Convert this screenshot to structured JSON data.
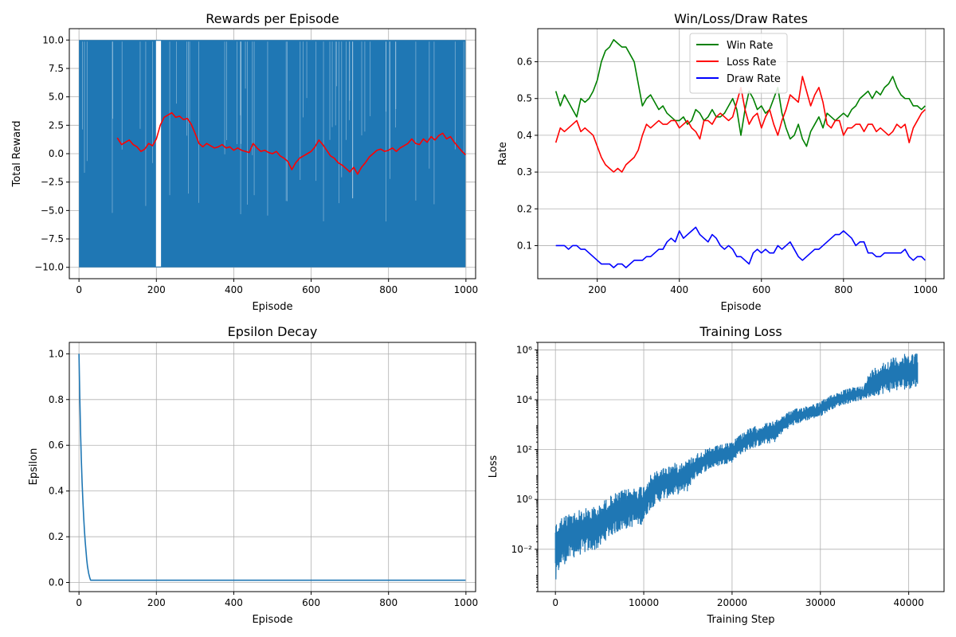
{
  "chart_data": [
    {
      "type": "line",
      "title": "Rewards per Episode",
      "xlabel": "Episode",
      "ylabel": "Total Reward",
      "xlim": [
        -25,
        1025
      ],
      "ylim": [
        -11,
        11
      ],
      "xticks": [
        0,
        200,
        400,
        600,
        800,
        1000
      ],
      "xtick_labels": [
        "0",
        "200",
        "400",
        "600",
        "800",
        "1000"
      ],
      "yticks": [
        -10.0,
        -7.5,
        -5.0,
        -2.5,
        0.0,
        2.5,
        5.0,
        7.5,
        10.0
      ],
      "ytick_labels": [
        "−10.0",
        "−7.5",
        "−5.0",
        "−2.5",
        "0.0",
        "2.5",
        "5.0",
        "7.5",
        "10.0"
      ],
      "grid": true,
      "series": [
        {
          "color": "#1f77b4",
          "style": "dense_binary",
          "x_range": [
            0,
            999
          ],
          "values": [
            -10,
            10
          ],
          "white_gaps": [
            [
              199,
              212
            ]
          ]
        },
        {
          "color": "#ff0000",
          "x": [
            99,
            110,
            120,
            130,
            140,
            150,
            160,
            170,
            180,
            190,
            200,
            210,
            220,
            230,
            240,
            250,
            260,
            270,
            280,
            290,
            300,
            310,
            320,
            330,
            340,
            350,
            360,
            370,
            380,
            390,
            400,
            410,
            420,
            430,
            440,
            450,
            460,
            470,
            480,
            490,
            500,
            510,
            520,
            530,
            540,
            550,
            560,
            570,
            580,
            590,
            600,
            610,
            620,
            630,
            640,
            650,
            660,
            670,
            680,
            690,
            700,
            710,
            720,
            730,
            740,
            750,
            760,
            770,
            780,
            790,
            800,
            810,
            820,
            830,
            840,
            850,
            860,
            870,
            880,
            890,
            900,
            910,
            920,
            930,
            940,
            950,
            960,
            970,
            980,
            990,
            999
          ],
          "y": [
            1.4,
            0.8,
            1.0,
            1.2,
            0.8,
            0.6,
            0.2,
            0.4,
            0.9,
            0.7,
            1.3,
            2.5,
            3.2,
            3.4,
            3.6,
            3.2,
            3.3,
            3.0,
            3.1,
            2.6,
            1.8,
            0.9,
            0.6,
            0.9,
            0.7,
            0.5,
            0.6,
            0.8,
            0.5,
            0.6,
            0.3,
            0.5,
            0.3,
            0.2,
            0.1,
            0.9,
            0.5,
            0.2,
            0.3,
            0.1,
            0.0,
            0.2,
            -0.2,
            -0.4,
            -0.7,
            -1.4,
            -0.8,
            -0.4,
            -0.2,
            0.0,
            0.2,
            0.6,
            1.2,
            0.8,
            0.3,
            -0.2,
            -0.4,
            -0.8,
            -1.0,
            -1.3,
            -1.6,
            -1.2,
            -1.8,
            -1.2,
            -0.8,
            -0.3,
            0.0,
            0.3,
            0.4,
            0.2,
            0.3,
            0.5,
            0.2,
            0.5,
            0.7,
            0.9,
            1.3,
            0.9,
            0.8,
            1.3,
            1.0,
            1.5,
            1.2,
            1.6,
            1.8,
            1.3,
            1.5,
            1.0,
            0.6,
            0.2,
            -0.1
          ]
        }
      ]
    },
    {
      "type": "line",
      "title": "Win/Loss/Draw Rates",
      "xlabel": "Episode",
      "ylabel": "Rate",
      "xlim": [
        55,
        1045
      ],
      "ylim": [
        0.01,
        0.69
      ],
      "xticks": [
        200,
        400,
        600,
        800,
        1000
      ],
      "xtick_labels": [
        "200",
        "400",
        "600",
        "800",
        "1000"
      ],
      "yticks": [
        0.1,
        0.2,
        0.3,
        0.4,
        0.5,
        0.6
      ],
      "ytick_labels": [
        "0.1",
        "0.2",
        "0.3",
        "0.4",
        "0.5",
        "0.6"
      ],
      "grid": true,
      "legend_placement": "upper center",
      "series": [
        {
          "name": "Win Rate",
          "color": "#008000",
          "x": [
            99,
            110,
            120,
            130,
            140,
            150,
            160,
            170,
            180,
            190,
            200,
            210,
            220,
            230,
            240,
            250,
            260,
            270,
            280,
            290,
            300,
            310,
            320,
            330,
            340,
            350,
            360,
            370,
            380,
            390,
            400,
            410,
            420,
            430,
            440,
            450,
            460,
            470,
            480,
            490,
            500,
            510,
            520,
            530,
            540,
            550,
            560,
            570,
            580,
            590,
            600,
            610,
            620,
            630,
            640,
            650,
            660,
            670,
            680,
            690,
            700,
            710,
            720,
            730,
            740,
            750,
            760,
            770,
            780,
            790,
            800,
            810,
            820,
            830,
            840,
            850,
            860,
            870,
            880,
            890,
            900,
            910,
            920,
            930,
            940,
            950,
            960,
            970,
            980,
            990,
            999
          ],
          "y": [
            0.52,
            0.48,
            0.51,
            0.49,
            0.47,
            0.45,
            0.5,
            0.49,
            0.5,
            0.52,
            0.55,
            0.6,
            0.63,
            0.64,
            0.66,
            0.65,
            0.64,
            0.64,
            0.62,
            0.6,
            0.54,
            0.48,
            0.5,
            0.51,
            0.49,
            0.47,
            0.48,
            0.46,
            0.45,
            0.44,
            0.44,
            0.45,
            0.43,
            0.44,
            0.47,
            0.46,
            0.44,
            0.45,
            0.47,
            0.45,
            0.45,
            0.46,
            0.48,
            0.5,
            0.47,
            0.4,
            0.47,
            0.52,
            0.5,
            0.47,
            0.48,
            0.46,
            0.47,
            0.5,
            0.53,
            0.46,
            0.42,
            0.39,
            0.4,
            0.43,
            0.39,
            0.37,
            0.41,
            0.43,
            0.45,
            0.42,
            0.46,
            0.45,
            0.44,
            0.45,
            0.46,
            0.45,
            0.47,
            0.48,
            0.5,
            0.51,
            0.52,
            0.5,
            0.52,
            0.51,
            0.53,
            0.54,
            0.56,
            0.53,
            0.51,
            0.5,
            0.5,
            0.48,
            0.48,
            0.47,
            0.48
          ]
        },
        {
          "name": "Loss Rate",
          "color": "#ff0000",
          "x": [
            99,
            110,
            120,
            130,
            140,
            150,
            160,
            170,
            180,
            190,
            200,
            210,
            220,
            230,
            240,
            250,
            260,
            270,
            280,
            290,
            300,
            310,
            320,
            330,
            340,
            350,
            360,
            370,
            380,
            390,
            400,
            410,
            420,
            430,
            440,
            450,
            460,
            470,
            480,
            490,
            500,
            510,
            520,
            530,
            540,
            550,
            560,
            570,
            580,
            590,
            600,
            610,
            620,
            630,
            640,
            650,
            660,
            670,
            680,
            690,
            700,
            710,
            720,
            730,
            740,
            750,
            760,
            770,
            780,
            790,
            800,
            810,
            820,
            830,
            840,
            850,
            860,
            870,
            880,
            890,
            900,
            910,
            920,
            930,
            940,
            950,
            960,
            970,
            980,
            990,
            999
          ],
          "y": [
            0.38,
            0.42,
            0.41,
            0.42,
            0.43,
            0.44,
            0.41,
            0.42,
            0.41,
            0.4,
            0.37,
            0.34,
            0.32,
            0.31,
            0.3,
            0.31,
            0.3,
            0.32,
            0.33,
            0.34,
            0.36,
            0.4,
            0.43,
            0.42,
            0.43,
            0.44,
            0.43,
            0.43,
            0.44,
            0.44,
            0.42,
            0.43,
            0.44,
            0.42,
            0.41,
            0.39,
            0.44,
            0.44,
            0.43,
            0.45,
            0.46,
            0.45,
            0.44,
            0.45,
            0.49,
            0.53,
            0.47,
            0.43,
            0.45,
            0.46,
            0.42,
            0.45,
            0.47,
            0.43,
            0.4,
            0.44,
            0.47,
            0.51,
            0.5,
            0.49,
            0.56,
            0.52,
            0.48,
            0.51,
            0.53,
            0.49,
            0.43,
            0.42,
            0.44,
            0.44,
            0.4,
            0.42,
            0.42,
            0.43,
            0.43,
            0.41,
            0.43,
            0.43,
            0.41,
            0.42,
            0.41,
            0.4,
            0.41,
            0.43,
            0.42,
            0.43,
            0.38,
            0.42,
            0.44,
            0.46,
            0.47
          ]
        },
        {
          "name": "Draw Rate",
          "color": "#0000ff",
          "x": [
            99,
            110,
            120,
            130,
            140,
            150,
            160,
            170,
            180,
            190,
            200,
            210,
            220,
            230,
            240,
            250,
            260,
            270,
            280,
            290,
            300,
            310,
            320,
            330,
            340,
            350,
            360,
            370,
            380,
            390,
            400,
            410,
            420,
            430,
            440,
            450,
            460,
            470,
            480,
            490,
            500,
            510,
            520,
            530,
            540,
            550,
            560,
            570,
            580,
            590,
            600,
            610,
            620,
            630,
            640,
            650,
            660,
            670,
            680,
            690,
            700,
            710,
            720,
            730,
            740,
            750,
            760,
            770,
            780,
            790,
            800,
            810,
            820,
            830,
            840,
            850,
            860,
            870,
            880,
            890,
            900,
            910,
            920,
            930,
            940,
            950,
            960,
            970,
            980,
            990,
            999
          ],
          "y": [
            0.1,
            0.1,
            0.1,
            0.09,
            0.1,
            0.1,
            0.09,
            0.09,
            0.08,
            0.07,
            0.06,
            0.05,
            0.05,
            0.05,
            0.04,
            0.05,
            0.05,
            0.04,
            0.05,
            0.06,
            0.06,
            0.06,
            0.07,
            0.07,
            0.08,
            0.09,
            0.09,
            0.11,
            0.12,
            0.11,
            0.14,
            0.12,
            0.13,
            0.14,
            0.15,
            0.13,
            0.12,
            0.11,
            0.13,
            0.12,
            0.1,
            0.09,
            0.1,
            0.09,
            0.07,
            0.07,
            0.06,
            0.05,
            0.08,
            0.09,
            0.08,
            0.09,
            0.08,
            0.08,
            0.1,
            0.09,
            0.1,
            0.11,
            0.09,
            0.07,
            0.06,
            0.07,
            0.08,
            0.09,
            0.09,
            0.1,
            0.11,
            0.12,
            0.13,
            0.13,
            0.14,
            0.13,
            0.12,
            0.1,
            0.11,
            0.11,
            0.08,
            0.08,
            0.07,
            0.07,
            0.08,
            0.08,
            0.08,
            0.08,
            0.08,
            0.09,
            0.07,
            0.06,
            0.07,
            0.07,
            0.06
          ]
        }
      ]
    },
    {
      "type": "line",
      "title": "Epsilon Decay",
      "xlabel": "Episode",
      "ylabel": "Epsilon",
      "xlim": [
        -25,
        1025
      ],
      "ylim": [
        -0.04,
        1.05
      ],
      "xticks": [
        0,
        200,
        400,
        600,
        800,
        1000
      ],
      "xtick_labels": [
        "0",
        "200",
        "400",
        "600",
        "800",
        "1000"
      ],
      "yticks": [
        0.0,
        0.2,
        0.4,
        0.6,
        0.8,
        1.0
      ],
      "ytick_labels": [
        "0.0",
        "0.2",
        "0.4",
        "0.6",
        "0.8",
        "1.0"
      ],
      "grid": true,
      "series": [
        {
          "color": "#1f77b4",
          "x": [
            0,
            2,
            4,
            6,
            8,
            10,
            12,
            14,
            16,
            18,
            20,
            22,
            25,
            28,
            30,
            40,
            60,
            100,
            200,
            400,
            600,
            800,
            999
          ],
          "y": [
            1.0,
            0.82,
            0.66,
            0.54,
            0.44,
            0.36,
            0.29,
            0.23,
            0.18,
            0.14,
            0.1,
            0.07,
            0.04,
            0.02,
            0.01,
            0.01,
            0.01,
            0.01,
            0.01,
            0.01,
            0.01,
            0.01,
            0.01
          ]
        }
      ]
    },
    {
      "type": "line",
      "title": "Training Loss",
      "xlabel": "Training Step",
      "ylabel": "Loss",
      "yscale": "log",
      "xlim": [
        -2000,
        44000
      ],
      "ylim": [
        0.0002,
        2000000
      ],
      "xticks": [
        0,
        10000,
        20000,
        30000,
        40000
      ],
      "xtick_labels": [
        "0",
        "10000",
        "20000",
        "30000",
        "40000"
      ],
      "yticks": [
        0.01,
        1,
        100,
        10000,
        1000000
      ],
      "ytick_labels": [
        "10⁻²",
        "10⁰",
        "10²",
        "10⁴",
        "10⁶"
      ],
      "grid": true,
      "series": [
        {
          "color": "#1f77b4",
          "style": "noisy_band",
          "x": [
            0,
            5000,
            10000,
            15000,
            20000,
            25000,
            30000,
            35000,
            41000
          ],
          "upper": [
            0.15,
            0.6,
            4,
            40,
            200,
            1500,
            8000,
            40000,
            900000
          ],
          "lower": [
            0.0005,
            0.01,
            0.1,
            2,
            30,
            200,
            2000,
            10000,
            30000
          ]
        }
      ]
    }
  ]
}
